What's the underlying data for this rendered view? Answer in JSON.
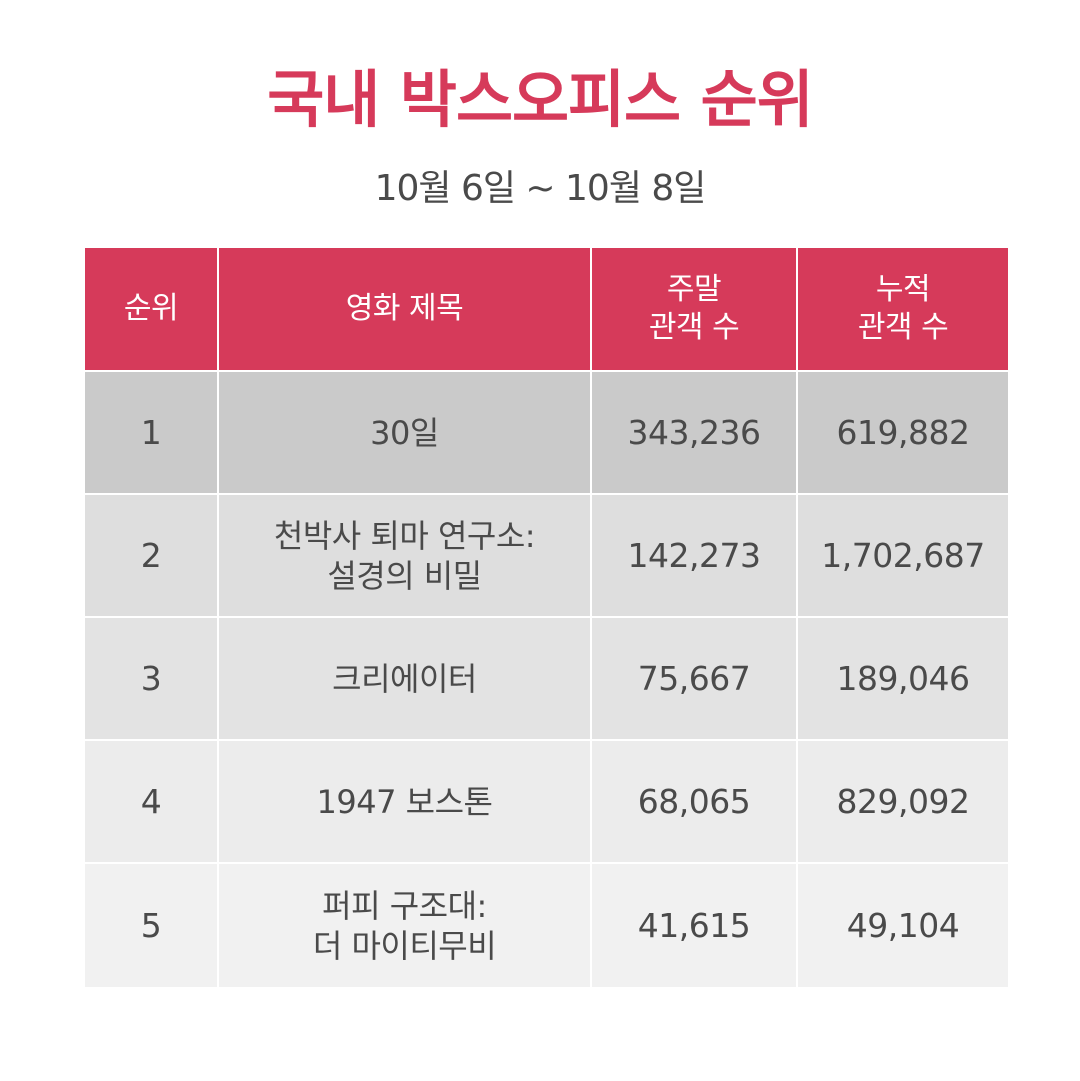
{
  "title": "국내 박스오피스 순위",
  "subtitle": "10월 6일 ~ 10월 8일",
  "table": {
    "headers": {
      "rank": "순위",
      "movie_title": "영화 제목",
      "weekend_audience": "주말\n관객 수",
      "total_audience": "누적\n관객 수"
    },
    "rows": [
      {
        "rank": "1",
        "title": "30일",
        "weekend": "343,236",
        "total": "619,882"
      },
      {
        "rank": "2",
        "title": "천박사 퇴마 연구소:\n설경의 비밀",
        "weekend": "142,273",
        "total": "1,702,687"
      },
      {
        "rank": "3",
        "title": "크리에이터",
        "weekend": "75,667",
        "total": "189,046"
      },
      {
        "rank": "4",
        "title": "1947 보스톤",
        "weekend": "68,065",
        "total": "829,092"
      },
      {
        "rank": "5",
        "title": "퍼피 구조대:\n더 마이티무비",
        "weekend": "41,615",
        "total": "49,104"
      }
    ]
  },
  "colors": {
    "accent": "#d63a5a",
    "text": "#4a4a4a",
    "header_text": "#ffffff"
  }
}
